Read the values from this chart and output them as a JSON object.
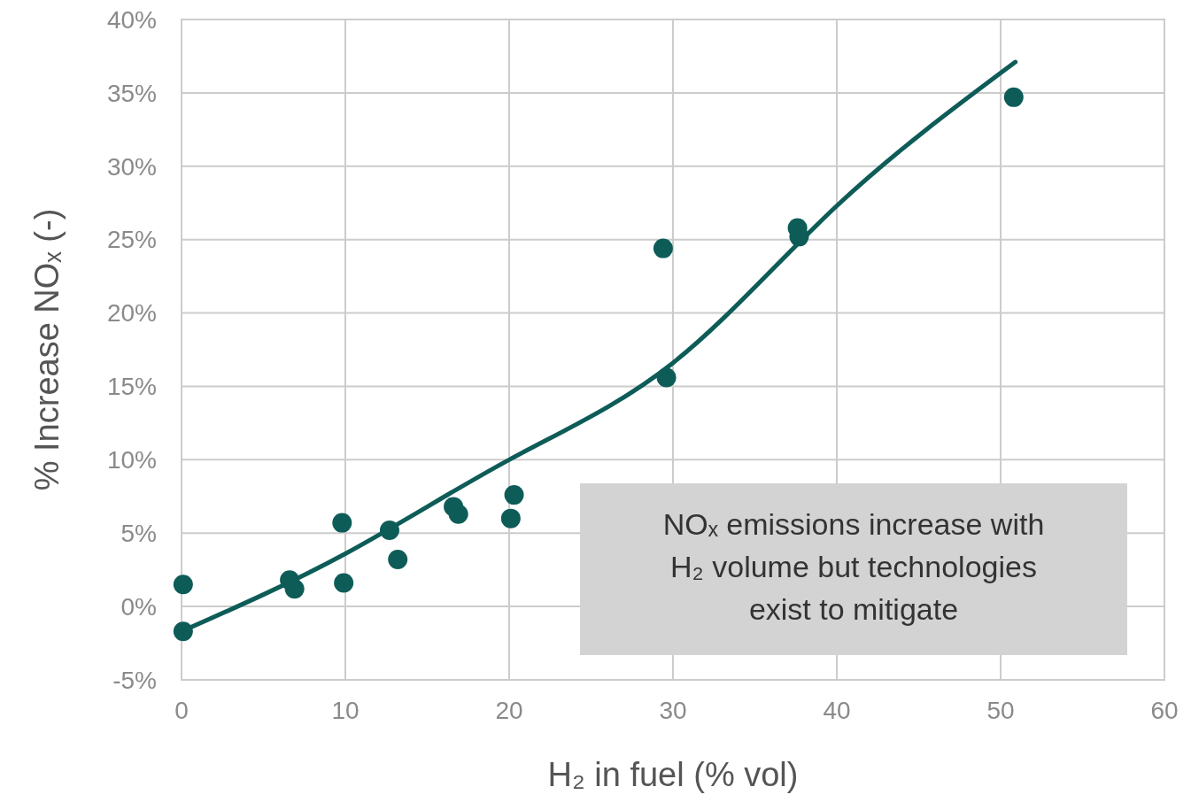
{
  "chart_data": {
    "type": "scatter",
    "xlabel": "H₂ in fuel (% vol)",
    "ylabel": "% Increase NOₓ (-)",
    "xlim": [
      0,
      60
    ],
    "xticks": [
      0,
      10,
      20,
      30,
      40,
      50,
      60
    ],
    "ylim": [
      -5,
      40
    ],
    "yticks": [
      {
        "value": -5,
        "label": "-5%"
      },
      {
        "value": 0,
        "label": "0%"
      },
      {
        "value": 5,
        "label": "5%"
      },
      {
        "value": 10,
        "label": "10%"
      },
      {
        "value": 15,
        "label": "15%"
      },
      {
        "value": 20,
        "label": "20%"
      },
      {
        "value": 25,
        "label": "25%"
      },
      {
        "value": 30,
        "label": "30%"
      },
      {
        "value": 35,
        "label": "35%"
      },
      {
        "value": 40,
        "label": "40%"
      }
    ],
    "grid": true,
    "series": [
      {
        "marker": "circle",
        "color": "#0e5c58",
        "x": [
          0.1,
          0.1,
          6.6,
          6.9,
          9.8,
          9.9,
          12.7,
          13.2,
          16.6,
          16.9,
          20.1,
          20.3,
          29.4,
          29.6,
          37.6,
          37.7,
          50.8
        ],
        "values": [
          1.5,
          -1.7,
          1.8,
          1.2,
          5.7,
          1.6,
          5.2,
          3.2,
          6.8,
          6.3,
          6.0,
          7.6,
          24.4,
          15.6,
          25.8,
          25.2,
          34.7
        ]
      },
      {
        "type": "line",
        "color": "#0e5c58",
        "x": [
          0,
          10,
          20,
          30,
          40,
          50.9
        ],
        "values": [
          -1.7,
          3.6,
          10.0,
          16.6,
          27.3,
          37.1
        ]
      }
    ],
    "annotations": [
      "NOₓ emissions increase with H₂ volume but technologies exist to mitigate"
    ]
  }
}
